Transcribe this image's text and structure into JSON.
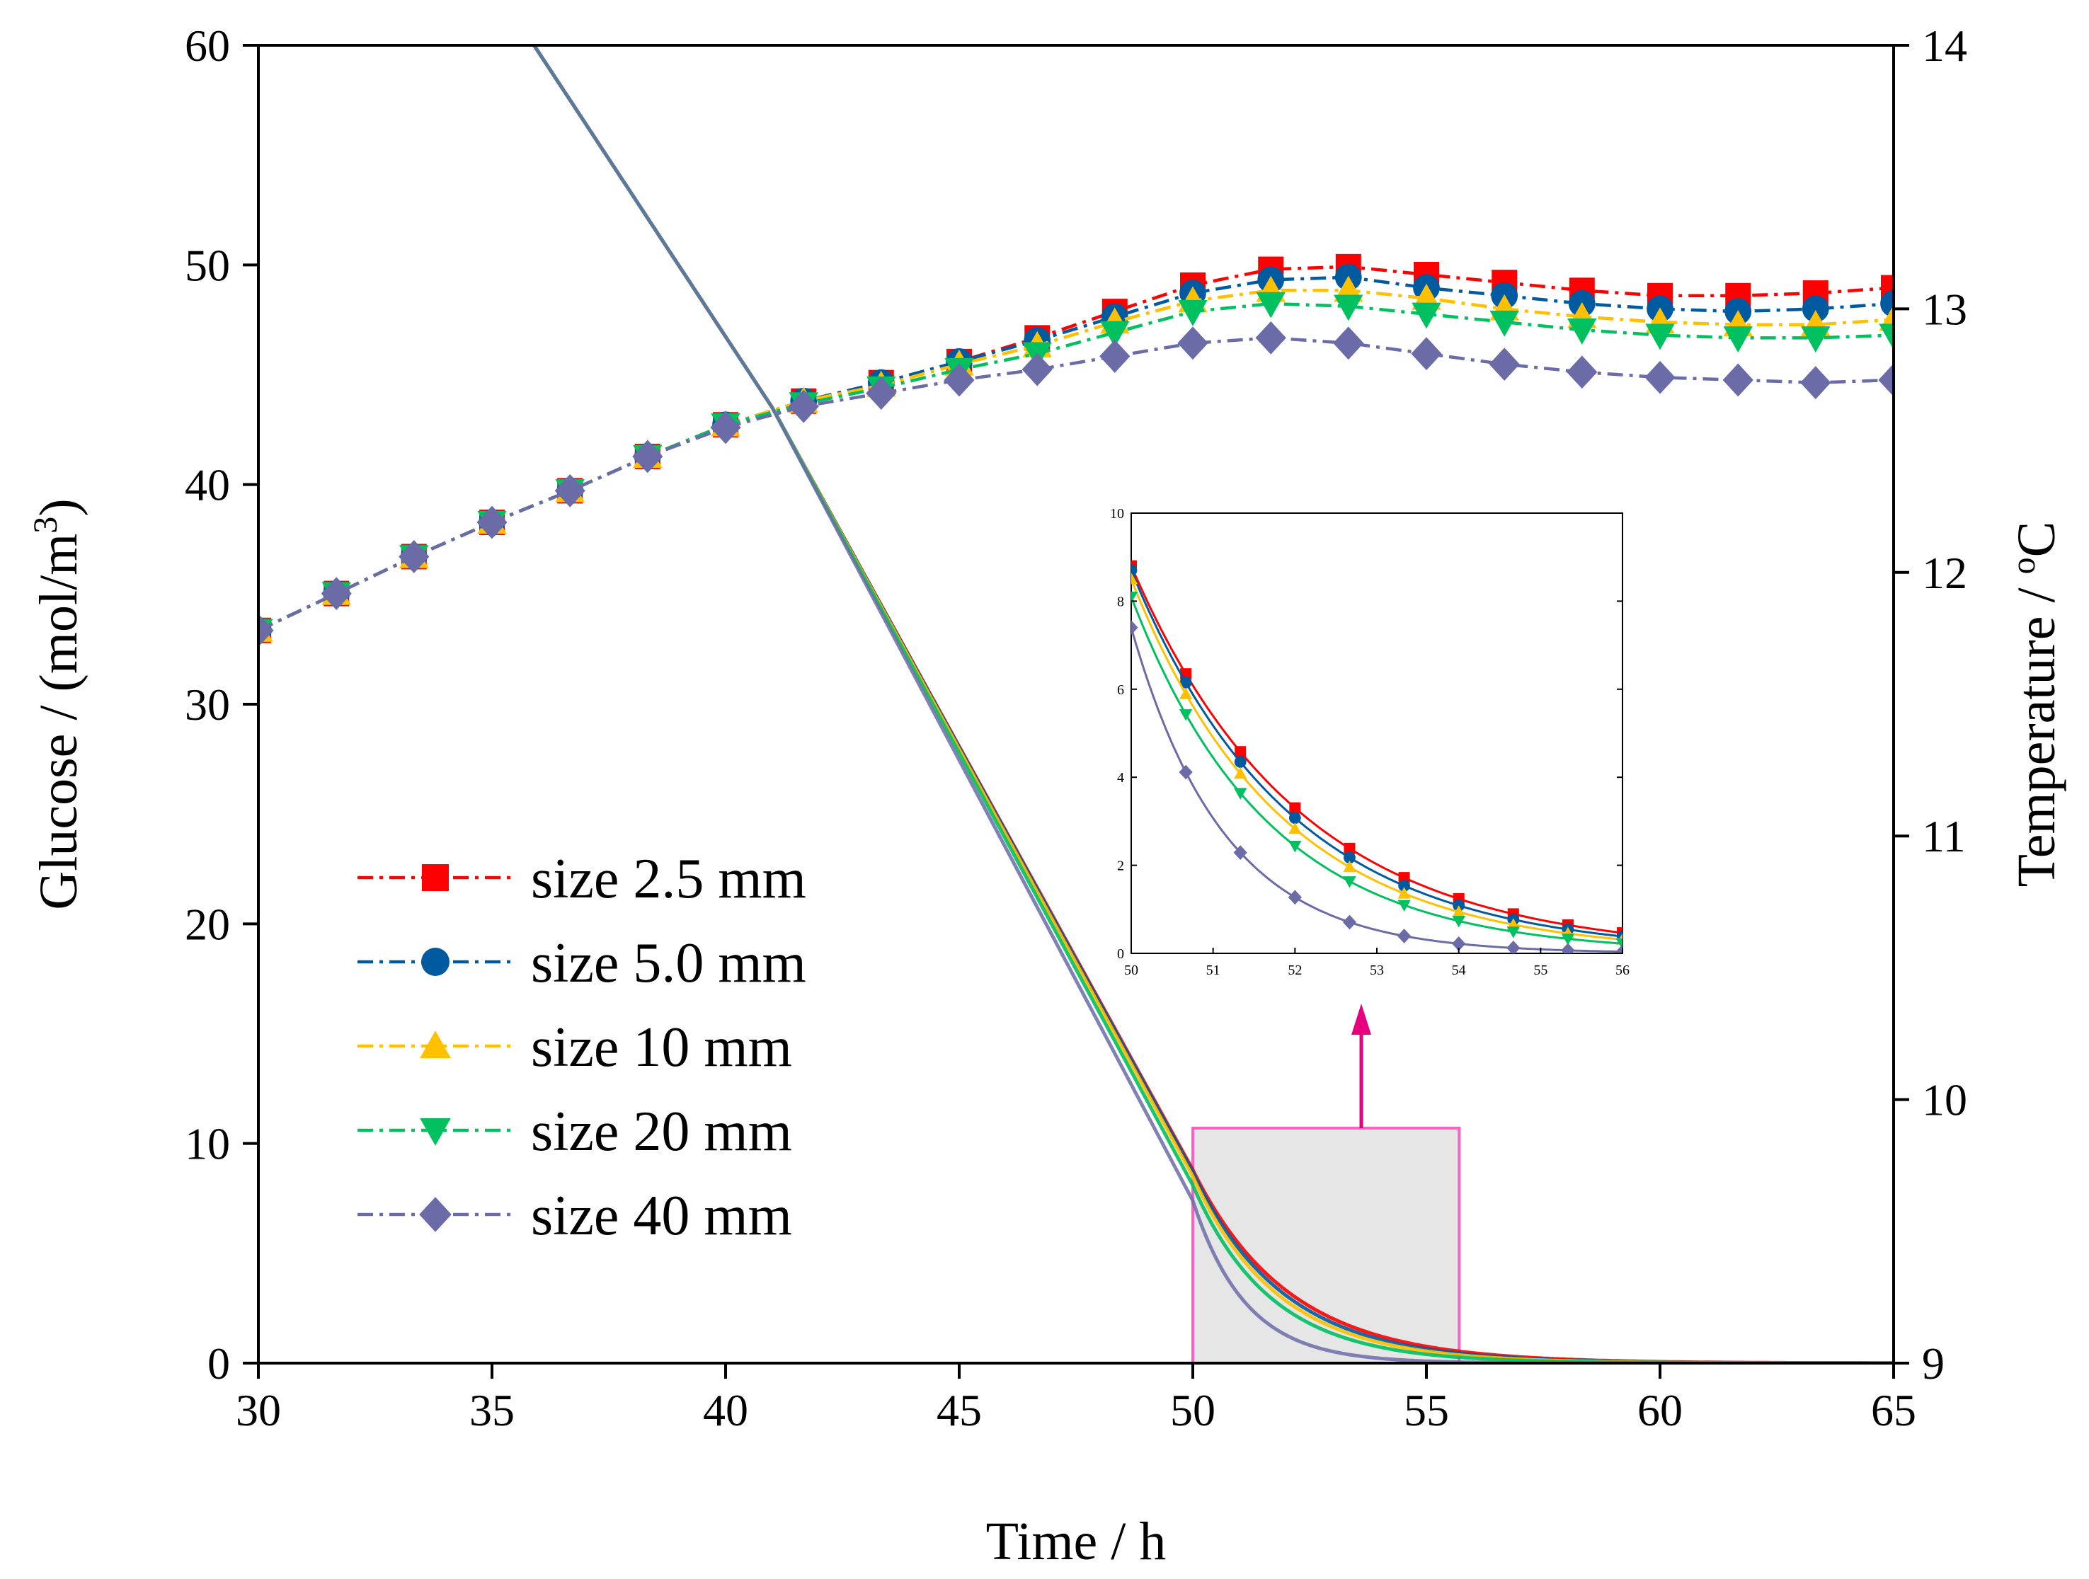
{
  "chart_data": {
    "type": "line",
    "main": {
      "xlabel": "Time / h",
      "ylabel_left": "Glucose / (mol/m",
      "ylabel_left_sup": "3",
      "ylabel_left_close": ")",
      "ylabel_right": "Temperature / ",
      "ylabel_right_sup": "o",
      "ylabel_right_unit": "C",
      "xlim": [
        30,
        65
      ],
      "ylim_left": [
        0,
        60
      ],
      "ylim_right": [
        9,
        14
      ],
      "xticks": [
        30,
        35,
        40,
        45,
        50,
        55,
        60,
        65
      ],
      "yticks_left": [
        0,
        10,
        20,
        30,
        40,
        50,
        60
      ],
      "yticks_right": [
        9,
        10,
        11,
        12,
        13,
        14
      ],
      "legend_position": "center-left"
    },
    "temperature_x": [
      30,
      31.67,
      33.33,
      35,
      36.67,
      38.33,
      40,
      41.67,
      43.33,
      45,
      46.67,
      48.33,
      50,
      51.67,
      53.33,
      55,
      56.67,
      58.33,
      60,
      61.67,
      63.33,
      65
    ],
    "temperature_series": [
      {
        "name": "size 2.5 mm",
        "color": "#ff0000",
        "marker": "square",
        "values": [
          11.78,
          11.92,
          12.06,
          12.19,
          12.31,
          12.44,
          12.56,
          12.65,
          12.72,
          12.8,
          12.89,
          12.99,
          13.09,
          13.15,
          13.16,
          13.13,
          13.1,
          13.07,
          13.05,
          13.05,
          13.06,
          13.08
        ]
      },
      {
        "name": "size 5.0 mm",
        "color": "#005aa0",
        "marker": "circle",
        "values": [
          11.78,
          11.92,
          12.06,
          12.19,
          12.31,
          12.44,
          12.56,
          12.65,
          12.72,
          12.8,
          12.88,
          12.97,
          13.06,
          13.11,
          13.12,
          13.08,
          13.05,
          13.02,
          13.0,
          12.99,
          13.0,
          13.02
        ]
      },
      {
        "name": "size 10 mm",
        "color": "#ffc000",
        "marker": "triangle-up",
        "values": [
          11.78,
          11.92,
          12.06,
          12.19,
          12.31,
          12.44,
          12.56,
          12.65,
          12.71,
          12.79,
          12.86,
          12.95,
          13.03,
          13.07,
          13.07,
          13.04,
          13.0,
          12.97,
          12.95,
          12.94,
          12.94,
          12.96
        ]
      },
      {
        "name": "size 20 mm",
        "color": "#00c060",
        "marker": "triangle-down",
        "values": [
          11.78,
          11.92,
          12.06,
          12.19,
          12.31,
          12.44,
          12.56,
          12.64,
          12.7,
          12.77,
          12.83,
          12.91,
          12.99,
          13.02,
          13.01,
          12.98,
          12.95,
          12.92,
          12.9,
          12.89,
          12.89,
          12.9
        ]
      },
      {
        "name": "size 40 mm",
        "color": "#6b6ba8",
        "marker": "diamond",
        "values": [
          11.78,
          11.92,
          12.06,
          12.19,
          12.31,
          12.44,
          12.55,
          12.63,
          12.68,
          12.73,
          12.77,
          12.82,
          12.87,
          12.89,
          12.87,
          12.83,
          12.79,
          12.76,
          12.74,
          12.73,
          12.72,
          12.73
        ]
      }
    ],
    "glucose_curves": [
      {
        "name": "size 2.5 mm",
        "color": "#ff0000",
        "x_cross": 50,
        "y_cross": 8.8,
        "decay": 0.49
      },
      {
        "name": "size 5.0 mm",
        "color": "#005aa0",
        "x_cross": 50,
        "y_cross": 8.7,
        "decay": 0.52
      },
      {
        "name": "size 10 mm",
        "color": "#ffc000",
        "x_cross": 50,
        "y_cross": 8.5,
        "decay": 0.55
      },
      {
        "name": "size 20 mm",
        "color": "#00c060",
        "x_cross": 50,
        "y_cross": 8.1,
        "decay": 0.6
      },
      {
        "name": "size 40 mm",
        "color": "#6b6ba8",
        "x_cross": 50,
        "y_cross": 7.4,
        "decay": 0.88
      }
    ],
    "glucose_linear": {
      "x_start": 35.9,
      "y_start": 60,
      "x_mid": 41,
      "y_mid": 43.5,
      "x_end": 50
    },
    "zoom_region": {
      "x": [
        50,
        55.7
      ],
      "y": [
        0,
        10.7
      ]
    },
    "inset": {
      "xlim": [
        50,
        56
      ],
      "ylim": [
        0,
        10
      ],
      "xticks": [
        50,
        51,
        52,
        53,
        54,
        55,
        56
      ],
      "yticks": [
        0,
        2,
        4,
        6,
        8,
        10
      ]
    }
  }
}
